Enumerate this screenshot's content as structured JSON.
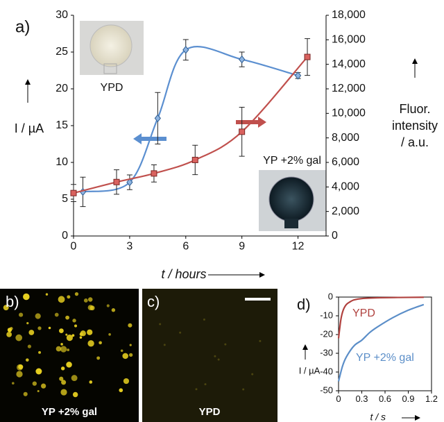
{
  "chart_data": [
    {
      "type": "line",
      "panel_label": "a)",
      "xlabel": "t / hours",
      "ylabel": "I / µA",
      "y2label": [
        "Fluor.",
        "intensity",
        "/ a.u."
      ],
      "xlim": [
        0,
        13.5
      ],
      "xticks": [
        0,
        3,
        6,
        9,
        12
      ],
      "ylim": [
        0,
        30
      ],
      "yticks": [
        0,
        5,
        10,
        15,
        20,
        25,
        30
      ],
      "y2lim": [
        0,
        18000
      ],
      "y2ticks": [
        0,
        {
          "value": 2000,
          "label": "2,000"
        },
        {
          "value": 4000,
          "label": "4,000"
        },
        {
          "value": 6000,
          "label": "6,000"
        },
        {
          "value": 8000,
          "label": "8,000"
        },
        {
          "value": 10000,
          "label": "10,000"
        },
        {
          "value": 12000,
          "label": "12,000"
        },
        {
          "value": 14000,
          "label": "14,000"
        },
        {
          "value": 16000,
          "label": "16,000"
        },
        {
          "value": 18000,
          "label": "18,000"
        }
      ],
      "annotations": [
        "YPD",
        "YP +2% gal"
      ],
      "series": [
        {
          "color": "#5b8fd0",
          "marker": "diamond",
          "x": [
            0.5,
            3,
            4.5,
            6,
            9,
            12
          ],
          "values": [
            6,
            7.3,
            16,
            25.3,
            24,
            21.8
          ],
          "errors": [
            2,
            1,
            3.5,
            1.4,
            1,
            0.4
          ]
        },
        {
          "color": "#c0504d",
          "marker": "square",
          "axis": "y2",
          "x": [
            0,
            2.3,
            4.3,
            6.5,
            9,
            12.5
          ],
          "values": [
            3500,
            4400,
            5100,
            6200,
            8500,
            14600
          ],
          "errors": [
            700,
            1000,
            700,
            1200,
            2000,
            1500
          ]
        }
      ]
    },
    {
      "type": "line",
      "panel_label": "d)",
      "xlabel": "t / s",
      "ylabel": "I / µA",
      "xlim": [
        0,
        1.2
      ],
      "xticks": [
        0,
        0.3,
        0.6,
        0.9,
        1.2
      ],
      "ylim": [
        -50,
        0
      ],
      "yticks": [
        -50,
        -40,
        -30,
        -20,
        -10,
        0
      ],
      "series": [
        {
          "name": "YPD",
          "color": "#b0413e",
          "x": [
            0,
            0.03,
            0.06,
            0.1,
            0.15,
            0.2,
            0.3,
            0.5,
            0.8,
            1.1
          ],
          "values": [
            -22,
            -12,
            -7,
            -4,
            -2.5,
            -1.5,
            -0.8,
            -0.4,
            -0.2,
            -0.1
          ]
        },
        {
          "name": "YP +2% gal",
          "color": "#5b8ec8",
          "x": [
            0,
            0.05,
            0.1,
            0.2,
            0.3,
            0.4,
            0.5,
            0.7,
            0.9,
            1.1
          ],
          "values": [
            -45,
            -37,
            -32,
            -26,
            -23,
            -19,
            -16,
            -11,
            -7,
            -4
          ]
        }
      ]
    }
  ],
  "images": [
    {
      "panel_label": "b)",
      "caption": "YP +2% gal"
    },
    {
      "panel_label": "c)",
      "caption": "YPD"
    }
  ]
}
